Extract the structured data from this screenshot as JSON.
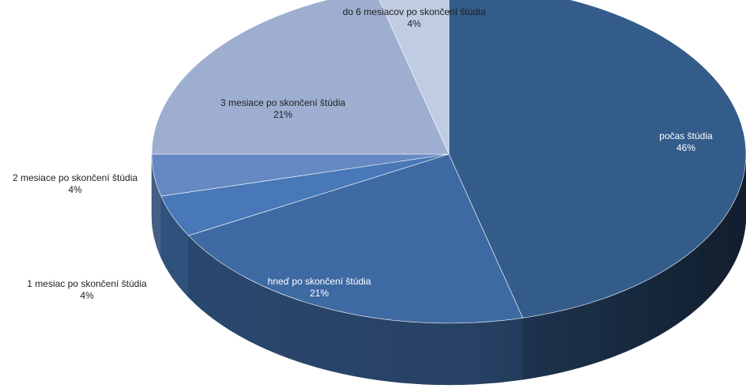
{
  "chart_data": {
    "type": "pie",
    "style": "3d",
    "title": "",
    "slices": [
      {
        "label": "počas štúdia",
        "value": 46,
        "value_label": "46%",
        "color": "#335c8a"
      },
      {
        "label": "hneď po skončení štúdia",
        "value": 21,
        "value_label": "21%",
        "color": "#3e6aa3"
      },
      {
        "label": "1 mesiac po skončení štúdia",
        "value": 4,
        "value_label": "4%",
        "color": "#4878b7"
      },
      {
        "label": "2 mesiace po skončení štúdia",
        "value": 4,
        "value_label": "4%",
        "color": "#6689c3"
      },
      {
        "label": "3 mesiace po skončení štúdia",
        "value": 21,
        "value_label": "21%",
        "color": "#9daed0"
      },
      {
        "label": "do 6 mesiacov po skončení štúdia",
        "value": 4,
        "value_label": "4%",
        "color": "#bfcce2"
      }
    ]
  }
}
